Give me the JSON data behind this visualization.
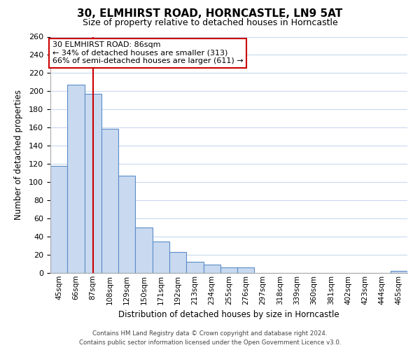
{
  "title": "30, ELMHIRST ROAD, HORNCASTLE, LN9 5AT",
  "subtitle": "Size of property relative to detached houses in Horncastle",
  "xlabel": "Distribution of detached houses by size in Horncastle",
  "ylabel": "Number of detached properties",
  "bar_labels": [
    "45sqm",
    "66sqm",
    "87sqm",
    "108sqm",
    "129sqm",
    "150sqm",
    "171sqm",
    "192sqm",
    "213sqm",
    "234sqm",
    "255sqm",
    "276sqm",
    "297sqm",
    "318sqm",
    "339sqm",
    "360sqm",
    "381sqm",
    "402sqm",
    "423sqm",
    "444sqm",
    "465sqm"
  ],
  "bar_values": [
    118,
    207,
    197,
    159,
    107,
    50,
    35,
    23,
    12,
    9,
    6,
    6,
    0,
    0,
    0,
    0,
    0,
    0,
    0,
    0,
    2
  ],
  "bar_color": "#c8d9f0",
  "bar_edge_color": "#5b8dc8",
  "highlight_bar_index": 2,
  "highlight_line_color": "#cc0000",
  "ylim": [
    0,
    260
  ],
  "yticks": [
    0,
    20,
    40,
    60,
    80,
    100,
    120,
    140,
    160,
    180,
    200,
    220,
    240,
    260
  ],
  "annotation_title": "30 ELMHIRST ROAD: 86sqm",
  "annotation_line1": "← 34% of detached houses are smaller (313)",
  "annotation_line2": "66% of semi-detached houses are larger (611) →",
  "annotation_box_color": "#ffffff",
  "annotation_box_edge_color": "#cc0000",
  "footer_line1": "Contains HM Land Registry data © Crown copyright and database right 2024.",
  "footer_line2": "Contains public sector information licensed under the Open Government Licence v3.0.",
  "background_color": "#ffffff",
  "grid_color": "#c8d9f0"
}
